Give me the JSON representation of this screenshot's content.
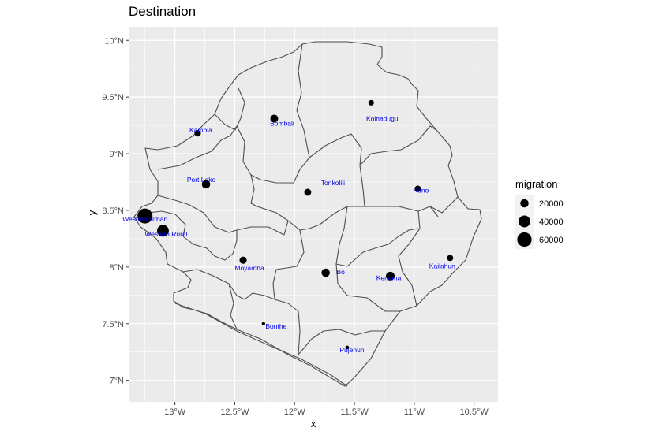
{
  "chart_data": {
    "type": "scatter",
    "title": "Destination",
    "xlabel": "x",
    "ylabel": "y",
    "xlim": [
      -13.38,
      -10.3
    ],
    "ylim": [
      6.81,
      10.12
    ],
    "x_ticks": [
      {
        "value": -13.0,
        "label": "13°W"
      },
      {
        "value": -12.5,
        "label": "12.5°W"
      },
      {
        "value": -12.0,
        "label": "12°W"
      },
      {
        "value": -11.5,
        "label": "11.5°W"
      },
      {
        "value": -11.0,
        "label": "11°W"
      },
      {
        "value": -10.5,
        "label": "10.5°W"
      }
    ],
    "y_ticks": [
      {
        "value": 10.0,
        "label": "10°N"
      },
      {
        "value": 9.5,
        "label": "9.5°N"
      },
      {
        "value": 9.0,
        "label": "9°N"
      },
      {
        "value": 8.5,
        "label": "8.5°N"
      },
      {
        "value": 8.0,
        "label": "8°N"
      },
      {
        "value": 7.5,
        "label": "7.5°N"
      },
      {
        "value": 7.0,
        "label": "7°N"
      }
    ],
    "grid": true,
    "points": [
      {
        "name": "Western Urban",
        "lon": -13.25,
        "lat": 8.45,
        "migration": 65000
      },
      {
        "name": "Western Rural",
        "lon": -13.1,
        "lat": 8.32,
        "migration": 40000
      },
      {
        "name": "Kambia",
        "lon": -12.81,
        "lat": 9.18,
        "migration": 12000
      },
      {
        "name": "Port Loko",
        "lon": -12.74,
        "lat": 8.73,
        "migration": 20000
      },
      {
        "name": "Bombali",
        "lon": -12.17,
        "lat": 9.31,
        "migration": 18000
      },
      {
        "name": "Koinadugu",
        "lon": -11.36,
        "lat": 9.45,
        "migration": 9000
      },
      {
        "name": "Tonkolili",
        "lon": -11.89,
        "lat": 8.66,
        "migration": 14000
      },
      {
        "name": "Kono",
        "lon": -10.97,
        "lat": 8.69,
        "migration": 12000
      },
      {
        "name": "Kailahun",
        "lon": -10.7,
        "lat": 8.08,
        "migration": 11000
      },
      {
        "name": "Kenema",
        "lon": -11.2,
        "lat": 7.92,
        "migration": 22000
      },
      {
        "name": "Bo",
        "lon": -11.74,
        "lat": 7.95,
        "migration": 20000
      },
      {
        "name": "Moyamba",
        "lon": -12.43,
        "lat": 8.06,
        "migration": 15000
      },
      {
        "name": "Bonthe",
        "lon": -12.26,
        "lat": 7.5,
        "migration": 3000
      },
      {
        "name": "Pujehun",
        "lon": -11.56,
        "lat": 7.29,
        "migration": 4000
      }
    ],
    "size_legend": {
      "title": "migration",
      "entries": [
        {
          "value": 20000,
          "label": "20000"
        },
        {
          "value": 40000,
          "label": "40000"
        },
        {
          "value": 60000,
          "label": "60000"
        }
      ]
    },
    "label_color": "#0000ee",
    "point_color": "#000000",
    "panel_color": "#ebebeb",
    "border_color": "#4d4d4d"
  }
}
